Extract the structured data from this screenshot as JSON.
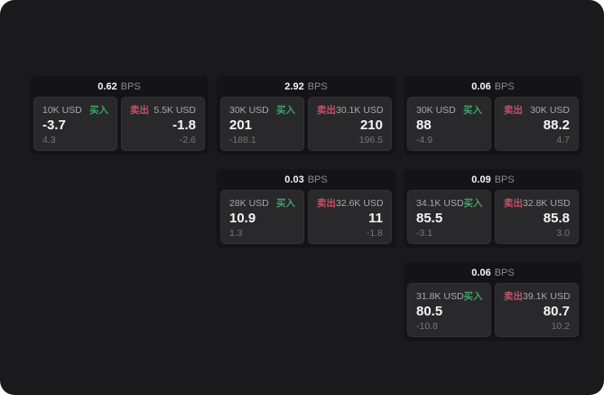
{
  "labels": {
    "bps_unit": "BPS",
    "buy": "买入",
    "sell": "卖出"
  },
  "colors": {
    "page_bg": "#1a1a1c",
    "card_bg": "#141416",
    "panel_bg": "#29292b",
    "buy": "#3ca36b",
    "sell": "#c8506a"
  },
  "cards": [
    {
      "col": 1,
      "row": 1,
      "bps": "0.62",
      "buy": {
        "amount": "10K USD",
        "price": "-3.7",
        "sub": "4.3"
      },
      "sell": {
        "amount": "5.5K USD",
        "price": "-1.8",
        "sub": "-2.6"
      }
    },
    {
      "col": 2,
      "row": 1,
      "bps": "2.92",
      "buy": {
        "amount": "30K USD",
        "price": "201",
        "sub": "-188.1"
      },
      "sell": {
        "amount": "30.1K USD",
        "price": "210",
        "sub": "196.5"
      }
    },
    {
      "col": 3,
      "row": 1,
      "bps": "0.06",
      "buy": {
        "amount": "30K USD",
        "price": "88",
        "sub": "-4.9"
      },
      "sell": {
        "amount": "30K USD",
        "price": "88.2",
        "sub": "4.7"
      }
    },
    {
      "col": 2,
      "row": 2,
      "bps": "0.03",
      "buy": {
        "amount": "28K USD",
        "price": "10.9",
        "sub": "1.3"
      },
      "sell": {
        "amount": "32.6K USD",
        "price": "11",
        "sub": "-1.8"
      }
    },
    {
      "col": 3,
      "row": 2,
      "bps": "0.09",
      "buy": {
        "amount": "34.1K USD",
        "price": "85.5",
        "sub": "-3.1"
      },
      "sell": {
        "amount": "32.8K USD",
        "price": "85.8",
        "sub": "3.0"
      }
    },
    {
      "col": 3,
      "row": 3,
      "bps": "0.06",
      "buy": {
        "amount": "31.8K USD",
        "price": "80.5",
        "sub": "-10.8"
      },
      "sell": {
        "amount": "39.1K USD",
        "price": "80.7",
        "sub": "10.2"
      }
    }
  ]
}
